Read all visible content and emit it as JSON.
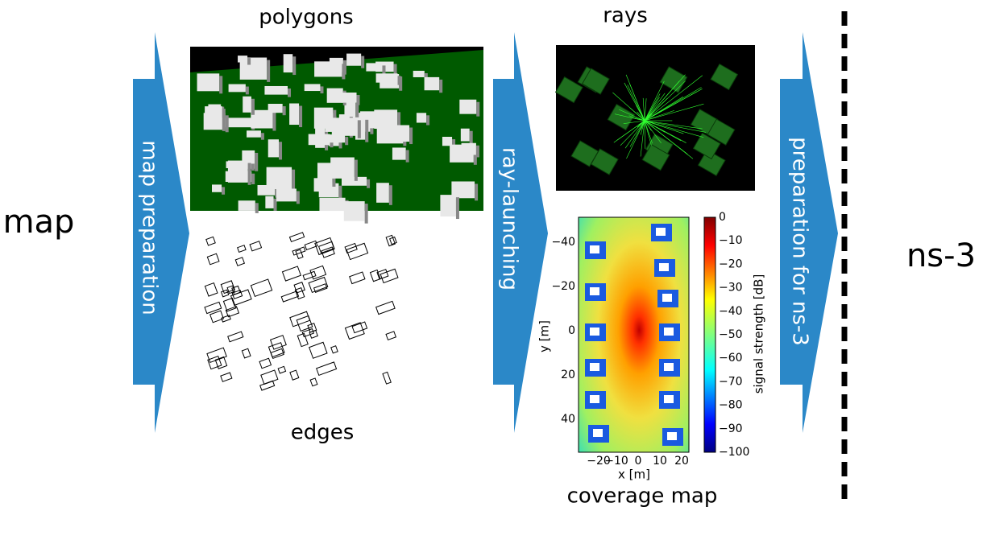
{
  "input": "map",
  "steps": [
    "map preparation",
    "ray-launching",
    "preparation for ns-3"
  ],
  "panels": [
    {
      "title": "polygons"
    },
    {
      "title": "edges"
    },
    {
      "title": "rays"
    }
  ],
  "coverage_map": {
    "title": "coverage map",
    "x_label": "x [m]",
    "y_label": "y [m]",
    "colorbar_label": "signal strength [dB]",
    "x_ticks": [
      "−20",
      "−10",
      "0",
      "10",
      "20"
    ],
    "y_ticks": [
      "−40",
      "−20",
      "0",
      "20",
      "40"
    ],
    "colorbar_ticks": [
      "0",
      "−10",
      "−20",
      "−30",
      "−40",
      "−50",
      "−60",
      "−70",
      "−80",
      "−90",
      "−100"
    ]
  },
  "output": "ns-3"
}
